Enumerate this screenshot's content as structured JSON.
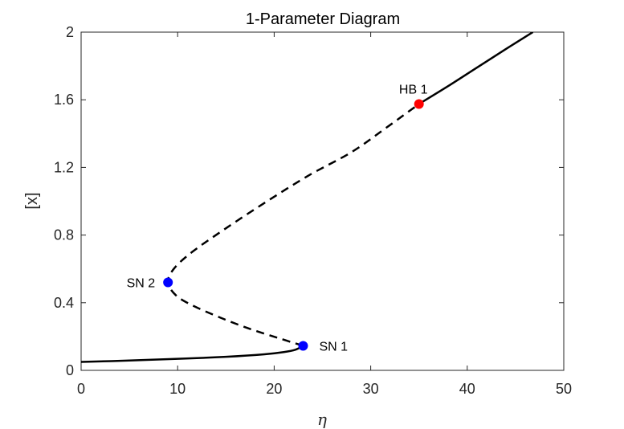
{
  "chart_data": {
    "type": "line",
    "title": "1-Parameter Diagram",
    "xlabel": "η",
    "ylabel": "[x]",
    "xlim": [
      0,
      50
    ],
    "ylim": [
      0,
      2
    ],
    "xticks": [
      "0",
      "10",
      "20",
      "30",
      "40",
      "50"
    ],
    "yticks": [
      "0",
      "0.4",
      "0.8",
      "1.2",
      "1.6",
      "2"
    ],
    "grid": false,
    "colors": {
      "line": "#000000",
      "hopf": "#ff0000",
      "saddle_node": "#0000ff",
      "axis": "#262626"
    },
    "series": [
      {
        "style": "solid",
        "points": [
          [
            0,
            0.05
          ],
          [
            5,
            0.058
          ],
          [
            10,
            0.068
          ],
          [
            15,
            0.08
          ],
          [
            19,
            0.095
          ],
          [
            21,
            0.108
          ],
          [
            22.2,
            0.122
          ],
          [
            23,
            0.145
          ]
        ]
      },
      {
        "style": "dashed",
        "points": [
          [
            23,
            0.145
          ],
          [
            20.5,
            0.19
          ],
          [
            17.5,
            0.245
          ],
          [
            14.5,
            0.31
          ],
          [
            11.5,
            0.385
          ],
          [
            9.8,
            0.445
          ],
          [
            9,
            0.52
          ],
          [
            9.6,
            0.6
          ],
          [
            11.5,
            0.7
          ],
          [
            15,
            0.84
          ],
          [
            19,
            0.99
          ],
          [
            23.5,
            1.15
          ],
          [
            28,
            1.29
          ],
          [
            31.5,
            1.43
          ],
          [
            35,
            1.575
          ]
        ]
      },
      {
        "style": "solid",
        "points": [
          [
            35,
            1.575
          ],
          [
            38,
            1.68
          ],
          [
            41,
            1.79
          ],
          [
            44,
            1.9
          ],
          [
            46.8,
            2.0
          ]
        ]
      }
    ],
    "special_points": [
      {
        "label": "HB 1",
        "x": 35,
        "y": 1.575,
        "color": "#ff0000",
        "label_side": "above-left"
      },
      {
        "label": "SN 2",
        "x": 9,
        "y": 0.52,
        "color": "#0000ff",
        "label_side": "left"
      },
      {
        "label": "SN 1",
        "x": 23,
        "y": 0.145,
        "color": "#0000ff",
        "label_side": "right"
      }
    ]
  }
}
